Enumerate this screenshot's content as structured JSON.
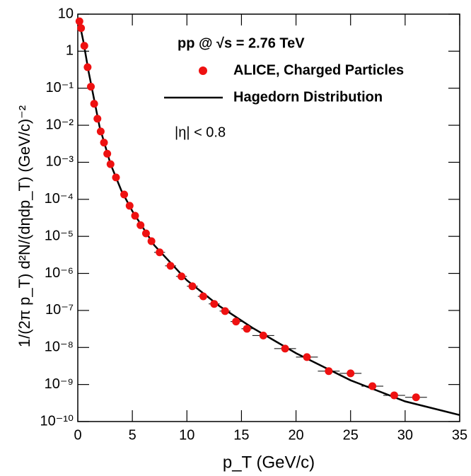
{
  "chart_data": {
    "type": "scatter",
    "annotations": [
      "pp @ √s = 2.76 TeV",
      "|η| < 0.8"
    ],
    "x_label": "p_T (GeV/c)",
    "y_label": "1/(2π p_T) d²N/(dηdp_T) (GeV/c)⁻²",
    "log_y": true,
    "xlim": [
      0,
      35
    ],
    "xticks": [
      0,
      5,
      10,
      15,
      20,
      25,
      30,
      35
    ],
    "ylim": [
      1e-10,
      10
    ],
    "yticks": [
      {
        "value": 1e-10,
        "label": "10⁻¹⁰"
      },
      {
        "value": 1e-09,
        "label": "10⁻⁹"
      },
      {
        "value": 1e-08,
        "label": "10⁻⁸"
      },
      {
        "value": 1e-07,
        "label": "10⁻⁷"
      },
      {
        "value": 1e-06,
        "label": "10⁻⁶"
      },
      {
        "value": 1e-05,
        "label": "10⁻⁵"
      },
      {
        "value": 0.0001,
        "label": "10⁻⁴"
      },
      {
        "value": 0.001,
        "label": "10⁻³"
      },
      {
        "value": 0.01,
        "label": "10⁻²"
      },
      {
        "value": 0.1,
        "label": "10⁻¹"
      },
      1,
      10
    ],
    "series": [
      {
        "name": "ALICE, Charged Particles",
        "color": "#ee1111",
        "kind": "points",
        "x": [
          0.15,
          0.3,
          0.6,
          0.9,
          1.2,
          1.5,
          1.8,
          2.1,
          2.4,
          2.7,
          3.0,
          3.5,
          4.25,
          4.75,
          5.25,
          5.75,
          6.25,
          6.75,
          7.5,
          8.5,
          9.5,
          10.5,
          11.5,
          12.5,
          13.5,
          14.5,
          15.5,
          17,
          19,
          21,
          23,
          25,
          27,
          29,
          31
        ],
        "xerr": [
          0.05,
          0.05,
          0.05,
          0.05,
          0.05,
          0.05,
          0.05,
          0.05,
          0.05,
          0.1,
          0.1,
          0.25,
          0.25,
          0.25,
          0.25,
          0.25,
          0.25,
          0.25,
          0.5,
          0.5,
          0.5,
          0.5,
          0.5,
          0.5,
          0.5,
          0.5,
          0.5,
          1,
          1,
          1,
          1,
          1,
          1,
          1,
          1
        ],
        "values": [
          6.4,
          4.2,
          1.4,
          0.37,
          0.11,
          0.038,
          0.015,
          0.0068,
          0.0034,
          0.0017,
          0.00089,
          0.00039,
          0.000135,
          6.7e-05,
          3.6e-05,
          2e-05,
          1.2e-05,
          7.4e-06,
          3.7e-06,
          1.6e-06,
          8.3e-07,
          4.5e-07,
          2.4e-07,
          1.5e-07,
          9.6e-08,
          5e-08,
          3.2e-08,
          2.1e-08,
          9.3e-09,
          5.5e-09,
          2.3e-09,
          2e-09,
          9e-10,
          5.1e-10,
          4.5e-10
        ]
      },
      {
        "name": "Hagedorn Distribution",
        "color": "#000000",
        "kind": "line",
        "x": [
          0.1,
          0.5,
          1,
          2,
          3,
          4,
          5,
          7,
          10,
          13,
          16,
          20,
          25,
          30,
          35
        ],
        "values": [
          7,
          1.9,
          0.27,
          0.009,
          0.0009,
          0.00017,
          4.8e-05,
          5.8e-06,
          6.5e-07,
          1.3e-07,
          3.4e-08,
          7e-09,
          1.3e-09,
          3.5e-10,
          1.5e-10
        ]
      }
    ]
  }
}
